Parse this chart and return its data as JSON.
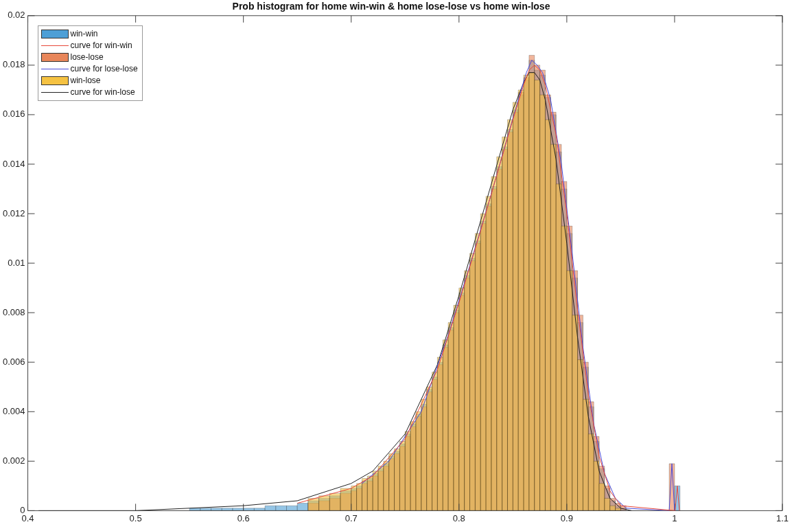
{
  "chart_data": {
    "type": "histogram",
    "title": "Prob histogram for home win-win & home lose-lose vs home win-lose",
    "bins": [
      0.55,
      0.56,
      0.57,
      0.58,
      0.59,
      0.6,
      0.61,
      0.62,
      0.63,
      0.64,
      0.65,
      0.66,
      0.67,
      0.68,
      0.69,
      0.7,
      0.705,
      0.71,
      0.715,
      0.72,
      0.725,
      0.73,
      0.735,
      0.74,
      0.745,
      0.75,
      0.755,
      0.76,
      0.765,
      0.77,
      0.775,
      0.78,
      0.785,
      0.79,
      0.795,
      0.8,
      0.805,
      0.81,
      0.815,
      0.82,
      0.825,
      0.83,
      0.835,
      0.84,
      0.845,
      0.85,
      0.855,
      0.86,
      0.865,
      0.87,
      0.875,
      0.88,
      0.885,
      0.89,
      0.895,
      0.9,
      0.905,
      0.91,
      0.915,
      0.92,
      0.925,
      0.93,
      0.935,
      0.94,
      0.945,
      0.95,
      0.955,
      0.995,
      1.0,
      1.005
    ],
    "series": [
      {
        "name": "win-win",
        "color": "#4d9fd6",
        "values": [
          0.0001,
          0.0001,
          0.0001,
          0.0001,
          0.0001,
          0.0001,
          0.0001,
          0.0002,
          0.0002,
          0.0002,
          0.0003,
          0.0004,
          0.0005,
          0.0006,
          0.0008,
          0.0009,
          0.001,
          0.0012,
          0.0013,
          0.0015,
          0.0017,
          0.0019,
          0.0022,
          0.0024,
          0.0027,
          0.0031,
          0.0035,
          0.0039,
          0.0043,
          0.0049,
          0.0054,
          0.006,
          0.0067,
          0.0074,
          0.0081,
          0.0088,
          0.0095,
          0.0102,
          0.0109,
          0.0117,
          0.0124,
          0.0131,
          0.0139,
          0.0147,
          0.0154,
          0.0162,
          0.0168,
          0.0174,
          0.0182,
          0.0178,
          0.0176,
          0.0167,
          0.016,
          0.0145,
          0.013,
          0.0112,
          0.0094,
          0.0076,
          0.0058,
          0.0042,
          0.0028,
          0.0017,
          0.0009,
          0.0004,
          0.0002,
          0.0001,
          0,
          0,
          0.001
        ]
      },
      {
        "name": "curve for win-win",
        "type": "line",
        "color": "#e8483a",
        "x": [
          0.65,
          0.7,
          0.72,
          0.75,
          0.78,
          0.8,
          0.82,
          0.84,
          0.85,
          0.86,
          0.865,
          0.87,
          0.875,
          0.88,
          0.89,
          0.9,
          0.91,
          0.92,
          0.93,
          0.94,
          0.95,
          1.0005,
          1.0025,
          1.0045
        ],
        "values": [
          0.0003,
          0.0009,
          0.0014,
          0.0029,
          0.0057,
          0.0084,
          0.0113,
          0.0143,
          0.0158,
          0.0172,
          0.0178,
          0.018,
          0.0178,
          0.0172,
          0.0152,
          0.012,
          0.0081,
          0.0047,
          0.0022,
          0.0008,
          0.0002,
          0,
          0.001,
          0
        ]
      },
      {
        "name": "lose-lose",
        "color": "#e8865a",
        "values": [
          null,
          null,
          null,
          null,
          null,
          null,
          null,
          null,
          null,
          null,
          null,
          0.0003,
          0.0004,
          0.0005,
          0.0007,
          0.0008,
          0.0009,
          0.0011,
          0.0012,
          0.0014,
          0.0016,
          0.0018,
          0.0021,
          0.0023,
          0.0026,
          0.003,
          0.0034,
          0.0038,
          0.0042,
          0.0048,
          0.0053,
          0.0059,
          0.0066,
          0.0073,
          0.008,
          0.0087,
          0.0094,
          0.0101,
          0.0108,
          0.0116,
          0.0123,
          0.013,
          0.0138,
          0.0146,
          0.0153,
          0.0161,
          0.0169,
          0.0175,
          0.0184,
          0.018,
          0.0178,
          0.0168,
          0.0161,
          0.0148,
          0.0133,
          0.0115,
          0.0097,
          0.0079,
          0.006,
          0.0044,
          0.003,
          0.0018,
          0.001,
          0.0005,
          0.0003,
          0.0002,
          0,
          0.0019,
          0
        ]
      },
      {
        "name": "curve for lose-lose",
        "type": "line",
        "color": "#4a4ad8",
        "x": [
          0.71,
          0.735,
          0.765,
          0.79,
          0.81,
          0.83,
          0.845,
          0.855,
          0.8625,
          0.8675,
          0.8725,
          0.8775,
          0.885,
          0.895,
          0.905,
          0.915,
          0.925,
          0.935,
          0.945,
          0.955,
          0.995,
          0.9975,
          1.0
        ],
        "values": [
          0.0011,
          0.002,
          0.004,
          0.0071,
          0.0099,
          0.0128,
          0.0151,
          0.0166,
          0.0177,
          0.0182,
          0.018,
          0.0177,
          0.0166,
          0.014,
          0.0104,
          0.0066,
          0.0035,
          0.0015,
          0.0005,
          0.0001,
          0,
          0.0019,
          0
        ]
      },
      {
        "name": "win-lose",
        "color": "#f5c242",
        "values": [
          null,
          null,
          null,
          null,
          null,
          null,
          null,
          null,
          null,
          null,
          null,
          0.0005,
          0.0006,
          0.0007,
          0.0009,
          0.001,
          0.0011,
          0.0013,
          0.0014,
          0.0016,
          0.0018,
          0.002,
          0.0023,
          0.0025,
          0.0028,
          0.0032,
          0.0036,
          0.004,
          0.0045,
          0.005,
          0.0056,
          0.0062,
          0.0069,
          0.0076,
          0.0083,
          0.009,
          0.0097,
          0.0104,
          0.0112,
          0.012,
          0.0127,
          0.0135,
          0.0143,
          0.0151,
          0.0158,
          0.0165,
          0.017,
          0.0176,
          0.0177,
          0.0174,
          0.0168,
          0.0158,
          0.0148,
          0.0132,
          0.0115,
          0.0097,
          0.0079,
          0.0061,
          0.0045,
          0.0031,
          0.002,
          0.0011,
          0.0005,
          0.0002,
          0.0001,
          0,
          0,
          0,
          0
        ]
      },
      {
        "name": "curve for win-lose",
        "type": "line",
        "color": "#222222",
        "x": [
          0.41,
          0.5,
          0.55,
          0.6,
          0.65,
          0.7,
          0.72,
          0.75,
          0.78,
          0.8,
          0.82,
          0.84,
          0.85,
          0.86,
          0.865,
          0.87,
          0.875,
          0.88,
          0.89,
          0.9,
          0.91,
          0.92,
          0.93,
          0.94,
          0.95,
          0.96
        ],
        "values": [
          0,
          0,
          0.0001,
          0.0002,
          0.0004,
          0.0011,
          0.0016,
          0.0031,
          0.0059,
          0.0087,
          0.0117,
          0.0147,
          0.0162,
          0.0173,
          0.0177,
          0.0177,
          0.0174,
          0.0166,
          0.0142,
          0.0108,
          0.007,
          0.0038,
          0.0016,
          0.0005,
          0.0001,
          0
        ]
      }
    ],
    "xlim": [
      0.4,
      1.1
    ],
    "xticks": [
      0.4,
      0.5,
      0.6,
      0.7,
      0.8,
      0.9,
      1,
      1.1
    ],
    "ylim": [
      0,
      0.02
    ],
    "yticks": [
      0,
      0.002,
      0.004,
      0.006,
      0.008,
      0.01,
      0.012,
      0.014,
      0.016,
      0.018,
      0.02
    ],
    "grid": false,
    "legend": "top left",
    "marker": "none"
  }
}
